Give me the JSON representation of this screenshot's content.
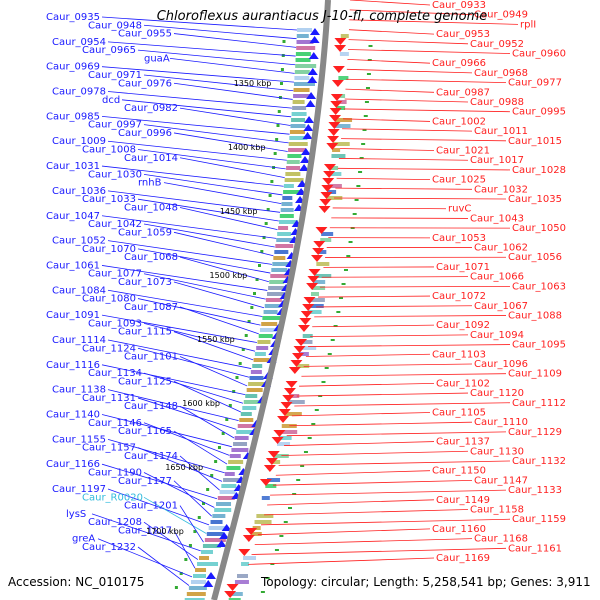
{
  "title": "Chloroflexus aurantiacus J-10-fl, complete genome",
  "footer": {
    "accession": "Accession: NC_010175",
    "topology": "Topology: circular; Length: 5,258,541 bp; Genes: 3,911"
  },
  "colors": {
    "forward_strand": "#1a1aff",
    "reverse_strand": "#ff2020",
    "rna": "#33bbdd",
    "backbone": "#888888",
    "ticks": "#33aa33"
  },
  "kbp_labels": [
    "1350 kbp",
    "1400 kbp",
    "1450 kbp",
    "1500 kbp",
    "1550 kbp",
    "1600 kbp",
    "1650 kbp",
    "1700 kbp"
  ],
  "left_labels": [
    "Caur_0935",
    "Caur_0948",
    "Caur_0955",
    "Caur_0954",
    "Caur_0965",
    "guaA",
    "Caur_0969",
    "Caur_0971",
    "Caur_0976",
    "Caur_0978",
    "dcd",
    "Caur_0982",
    "Caur_0985",
    "Caur_0997",
    "Caur_0996",
    "Caur_1009",
    "Caur_1008",
    "Caur_1014",
    "Caur_1031",
    "Caur_1030",
    "rnhB",
    "Caur_1036",
    "Caur_1033",
    "Caur_1048",
    "Caur_1047",
    "Caur_1042",
    "Caur_1059",
    "Caur_1052",
    "Caur_1070",
    "Caur_1068",
    "Caur_1061",
    "Caur_1077",
    "Caur_1073",
    "Caur_1084",
    "Caur_1080",
    "Caur_1087",
    "Caur_1091",
    "Caur_1093",
    "Caur_1115",
    "Caur_1114",
    "Caur_1124",
    "Caur_1101",
    "Caur_1116",
    "Caur_1134",
    "Caur_1125",
    "Caur_1138",
    "Caur_1131",
    "Caur_1148",
    "Caur_1140",
    "Caur_1146",
    "Caur_1165",
    "Caur_1155",
    "Caur_1157",
    "Caur_1174",
    "Caur_1166",
    "Caur_1190",
    "Caur_1177",
    "Caur_1197",
    "Caur_R0020",
    "Caur_1201",
    "lysS",
    "Caur_1208",
    "Caur_1217",
    "greA",
    "Caur_1232"
  ],
  "right_labels": [
    "Caur_0933",
    "Caur_0949",
    "rplI",
    "Caur_0953",
    "Caur_0952",
    "Caur_0960",
    "Caur_0966",
    "Caur_0968",
    "Caur_0977",
    "Caur_0987",
    "Caur_0988",
    "Caur_0995",
    "Caur_1002",
    "Caur_1011",
    "Caur_1015",
    "Caur_1021",
    "Caur_1017",
    "Caur_1028",
    "Caur_1025",
    "Caur_1032",
    "Caur_1035",
    "ruvC",
    "Caur_1043",
    "Caur_1050",
    "Caur_1053",
    "Caur_1062",
    "Caur_1056",
    "Caur_1071",
    "Caur_1066",
    "Caur_1063",
    "Caur_1072",
    "Caur_1067",
    "Caur_1088",
    "Caur_1092",
    "Caur_1094",
    "Caur_1095",
    "Caur_1103",
    "Caur_1096",
    "Caur_1109",
    "Caur_1102",
    "Caur_1120",
    "Caur_1112",
    "Caur_1105",
    "Caur_1110",
    "Caur_1129",
    "Caur_1137",
    "Caur_1130",
    "Caur_1132",
    "Caur_1150",
    "Caur_1147",
    "Caur_1133",
    "Caur_1149",
    "Caur_1158",
    "Caur_1159",
    "Caur_1160",
    "Caur_1168",
    "Caur_1161",
    "Caur_1169"
  ]
}
